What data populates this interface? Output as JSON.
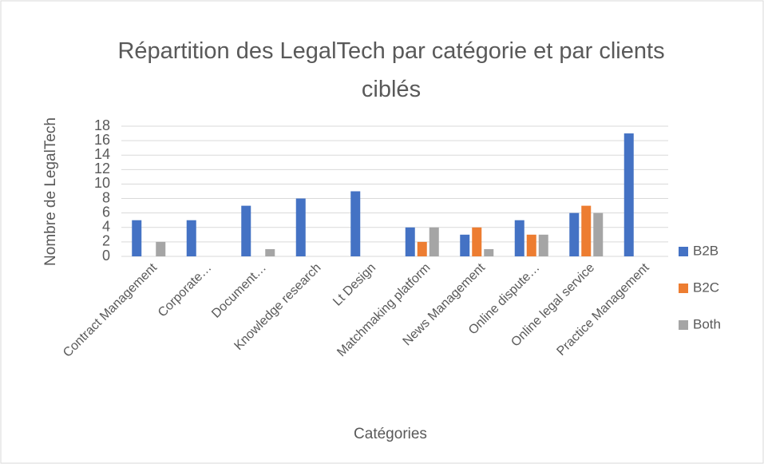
{
  "chart_data": {
    "type": "bar",
    "title": "Répartition des LegalTech par catégorie et par clients ciblés",
    "x_label": "Catégories",
    "y_label": "Nombre de LegalTech",
    "categories": [
      "Contract Management",
      "Corporate…",
      "Document…",
      "Knowledge research",
      "Lt Design",
      "Matchmaking platform",
      "News Management",
      "Online dispute…",
      "Online legal service",
      "Practice Management"
    ],
    "series": [
      {
        "name": "B2B",
        "color": "#4472c4",
        "values": [
          5,
          5,
          7,
          8,
          9,
          4,
          3,
          5,
          6,
          17
        ]
      },
      {
        "name": "B2C",
        "color": "#ed7d31",
        "values": [
          0,
          0,
          0,
          0,
          0,
          2,
          4,
          3,
          7,
          0
        ]
      },
      {
        "name": "Both",
        "color": "#a5a5a5",
        "values": [
          2,
          0,
          1,
          0,
          0,
          4,
          1,
          3,
          6,
          0
        ]
      }
    ],
    "ylim": [
      0,
      18
    ],
    "yticks": [
      0,
      2,
      4,
      6,
      8,
      10,
      12,
      14,
      16,
      18
    ],
    "grid": true,
    "legend": "right"
  }
}
